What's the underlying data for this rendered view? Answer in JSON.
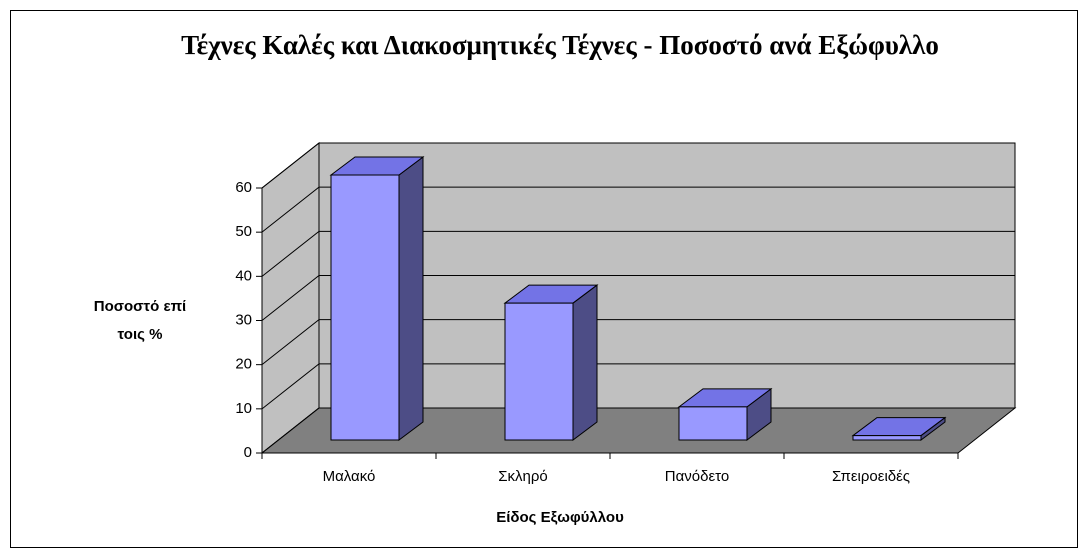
{
  "chart_data": {
    "type": "bar3d",
    "title": "Τέχνες Καλές και Διακοσμητικές Τέχνες - Ποσοστό ανά Εξώφυλλο",
    "y_label": "Ποσοστό επί τοις %",
    "x_label": "Είδος Εξωφύλλου",
    "categories": [
      "Μαλακό",
      "Σκληρό",
      "Πανόδετο",
      "Σπειροειδές"
    ],
    "values": [
      60,
      31,
      7.5,
      1
    ],
    "color": "#9999ff",
    "ylim": [
      0,
      60
    ],
    "yticks": [
      0,
      10,
      20,
      30,
      40,
      50,
      60
    ],
    "grid": true
  }
}
